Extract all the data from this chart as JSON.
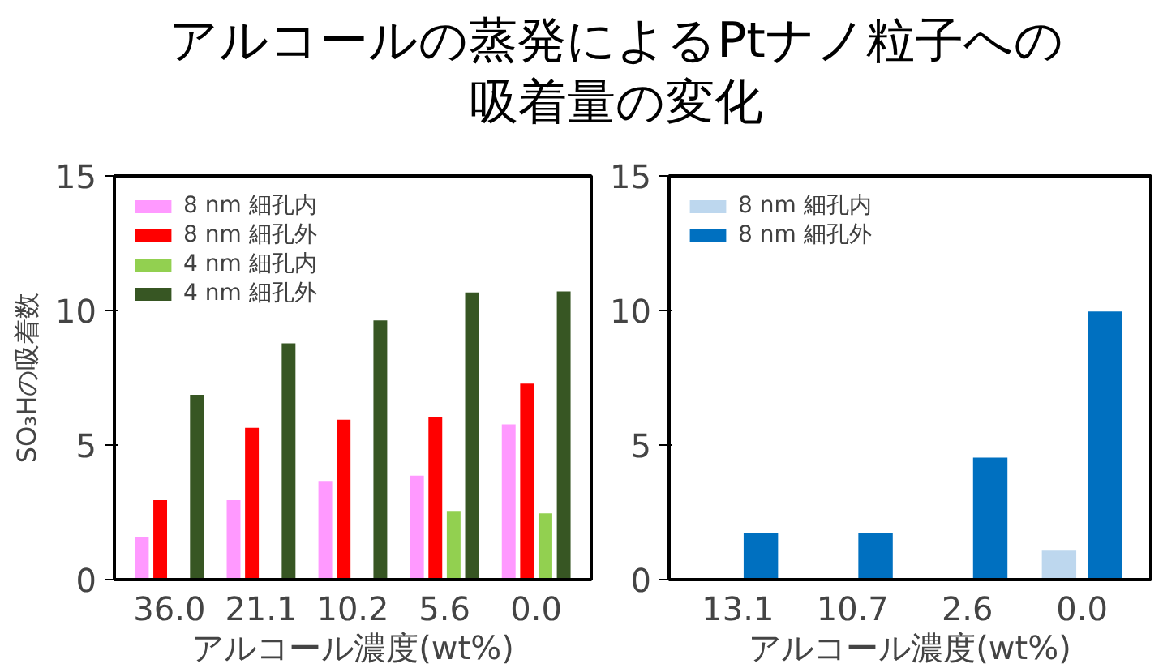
{
  "chart_data": [
    {
      "type": "bar",
      "title": "アルコールの蒸発によるPtナノ粒子への吸着量の変化",
      "xlabel": "アルコール濃度(wt%)",
      "ylabel": "SO₃Hの吸着数",
      "categories": [
        "36.0",
        "21.1",
        "10.2",
        "5.6",
        "0.0"
      ],
      "ylim": [
        0,
        15
      ],
      "yticks": [
        0,
        5,
        10,
        15
      ],
      "grid": false,
      "legend": "top left",
      "series": [
        {
          "name": "8 nm 細孔内",
          "color": "#ff99ff",
          "values": [
            1.6,
            2.95,
            3.67,
            3.86,
            5.77
          ]
        },
        {
          "name": "8 nm 細孔外",
          "color": "#ff0000",
          "values": [
            2.95,
            5.64,
            5.94,
            6.05,
            7.28
          ]
        },
        {
          "name": "4 nm 細孔内",
          "color": "#92d050",
          "values": [
            null,
            null,
            null,
            2.55,
            2.46
          ]
        },
        {
          "name": "4 nm 細孔外",
          "color": "#375623",
          "values": [
            6.87,
            8.78,
            9.63,
            10.67,
            10.71
          ]
        }
      ]
    },
    {
      "type": "bar",
      "xlabel": "アルコール濃度(wt%)",
      "categories": [
        "13.1",
        "10.7",
        "2.6",
        "0.0"
      ],
      "ylim": [
        0,
        15
      ],
      "yticks": [
        0,
        5,
        10,
        15
      ],
      "grid": false,
      "legend": "top left",
      "series": [
        {
          "name": "8 nm 細孔内",
          "color": "#bdd7ee",
          "values": [
            null,
            null,
            null,
            1.08
          ]
        },
        {
          "name": "8 nm 細孔外",
          "color": "#0070c0",
          "values": [
            1.74,
            1.74,
            4.53,
            9.96
          ]
        }
      ]
    }
  ]
}
